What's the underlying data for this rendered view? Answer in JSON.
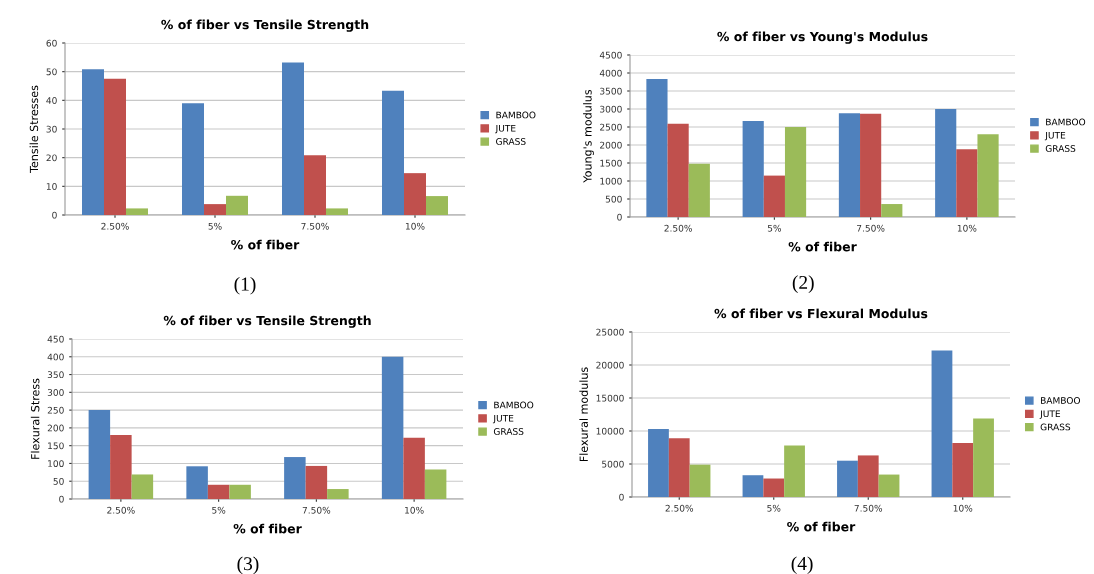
{
  "chart_data": [
    {
      "type": "bar",
      "title": "% of fiber vs Tensile Strength",
      "xlabel": "% of fiber",
      "ylabel": "Tensile Stresses",
      "categories": [
        "2.50%",
        "5%",
        "7.50%",
        "10%"
      ],
      "series": [
        {
          "name": "BAMBOO",
          "color": "#4f81bd",
          "values": [
            50.8,
            39,
            53.2,
            43.3
          ]
        },
        {
          "name": "JUTE",
          "color": "#c0504d",
          "values": [
            47.5,
            3.8,
            20.8,
            14.6
          ]
        },
        {
          "name": "GRASS",
          "color": "#9bbb59",
          "values": [
            2.3,
            6.7,
            2.3,
            6.6
          ]
        }
      ],
      "ylim": [
        0,
        60
      ],
      "yticks": [
        0,
        10,
        20,
        30,
        40,
        50,
        60
      ],
      "grid": "y",
      "legend": "right",
      "annotations": [
        "(1)"
      ]
    },
    {
      "type": "bar",
      "title": "% of fiber vs Young's Modulus",
      "xlabel": "% of fiber",
      "ylabel": "Young's modulus",
      "categories": [
        "2.50%",
        "5%",
        "7.50%",
        "10%"
      ],
      "series": [
        {
          "name": "BAMBOO",
          "color": "#4f81bd",
          "values": [
            3830,
            2670,
            2880,
            3000
          ]
        },
        {
          "name": "JUTE",
          "color": "#c0504d",
          "values": [
            2590,
            1150,
            2870,
            1880
          ]
        },
        {
          "name": "GRASS",
          "color": "#9bbb59",
          "values": [
            1480,
            2500,
            360,
            2300
          ]
        }
      ],
      "ylim": [
        0,
        4500
      ],
      "yticks": [
        0,
        500,
        1000,
        1500,
        2000,
        2500,
        3000,
        3500,
        4000,
        4500
      ],
      "grid": "y",
      "legend": "right",
      "annotations": [
        "(2)"
      ]
    },
    {
      "type": "bar",
      "title": "% of fiber vs Tensile Strength",
      "xlabel": "% of fiber",
      "ylabel": "Flexural Stress",
      "categories": [
        "2.50%",
        "5%",
        "7.50%",
        "10%"
      ],
      "series": [
        {
          "name": "BAMBOO",
          "color": "#4f81bd",
          "values": [
            250,
            92,
            118,
            400
          ]
        },
        {
          "name": "JUTE",
          "color": "#c0504d",
          "values": [
            180,
            40,
            93,
            172
          ]
        },
        {
          "name": "GRASS",
          "color": "#9bbb59",
          "values": [
            69,
            40,
            28,
            83
          ]
        }
      ],
      "ylim": [
        0,
        450
      ],
      "yticks": [
        0,
        50,
        100,
        150,
        200,
        250,
        300,
        350,
        400,
        450
      ],
      "grid": "y",
      "legend": "right",
      "annotations": [
        "(3)"
      ]
    },
    {
      "type": "bar",
      "title": "% of fiber vs Flexural Modulus",
      "xlabel": "% of fiber",
      "ylabel": "Flexural modulus",
      "categories": [
        "2.50%",
        "5%",
        "7.50%",
        "10%"
      ],
      "series": [
        {
          "name": "BAMBOO",
          "color": "#4f81bd",
          "values": [
            10300,
            3300,
            5500,
            22200
          ]
        },
        {
          "name": "JUTE",
          "color": "#c0504d",
          "values": [
            8900,
            2800,
            6300,
            8200
          ]
        },
        {
          "name": "GRASS",
          "color": "#9bbb59",
          "values": [
            4900,
            7800,
            3400,
            11900
          ]
        }
      ],
      "ylim": [
        0,
        25000
      ],
      "yticks": [
        0,
        5000,
        10000,
        15000,
        20000,
        25000
      ],
      "grid": "y",
      "legend": "right",
      "annotations": [
        "(4)"
      ]
    }
  ]
}
